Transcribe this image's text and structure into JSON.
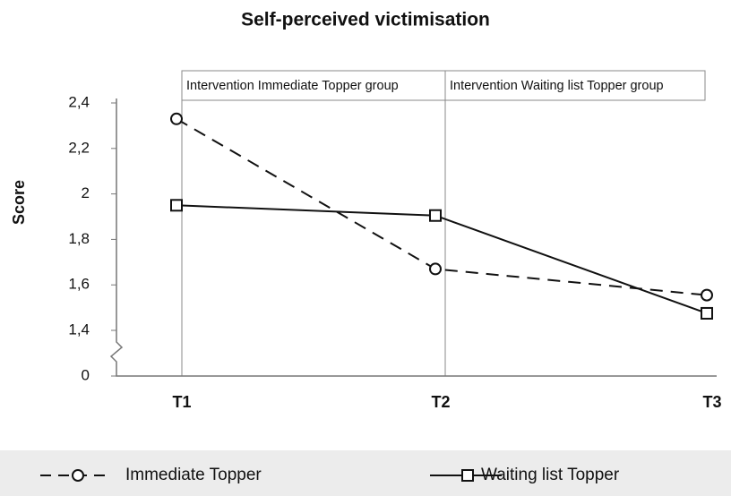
{
  "chart_data": {
    "type": "line",
    "title": "Self-perceived victimisation",
    "y_label": "Score",
    "categories": [
      "T1",
      "T2",
      "T3"
    ],
    "series": [
      {
        "name": "Immediate Topper",
        "color": "#111111",
        "line_style": "dashed",
        "marker": "circle",
        "values": [
          2.33,
          1.67,
          1.555
        ]
      },
      {
        "name": "Waiting list Topper",
        "color": "#111111",
        "line_style": "solid",
        "marker": "square",
        "values": [
          1.95,
          1.905,
          1.475
        ]
      }
    ],
    "ylim": [
      0,
      2.4
    ],
    "axis_break": [
      0,
      1.4
    ],
    "yticks": [
      0,
      {
        "value": 1.4,
        "label": "1,4"
      },
      {
        "value": 1.6,
        "label": "1,6"
      },
      {
        "value": 1.8,
        "label": "1,8"
      },
      2,
      {
        "value": 2.2,
        "label": "2,2"
      },
      {
        "value": 2.4,
        "label": "2,4"
      }
    ],
    "annotations": [
      "Intervention Immediate Topper group",
      "Intervention Waiting list Topper group"
    ],
    "legend": "bottom"
  }
}
